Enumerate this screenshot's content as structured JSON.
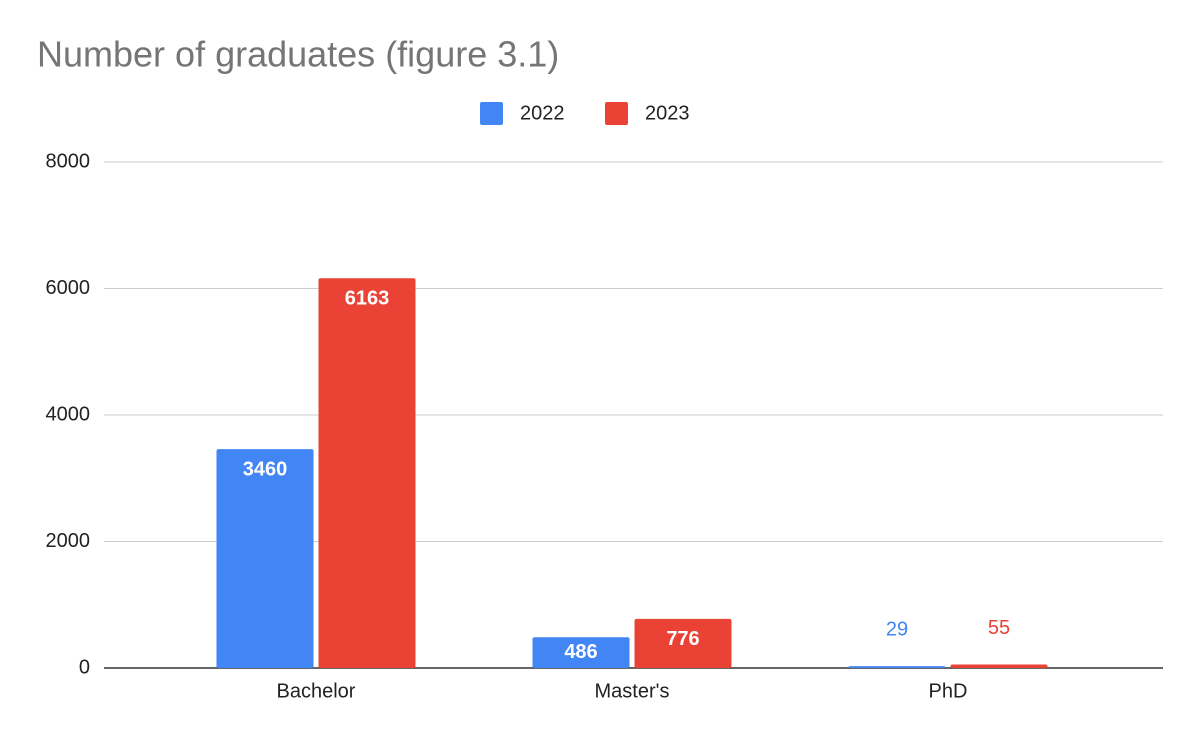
{
  "chart_data": {
    "type": "bar",
    "title": "Number of graduates (figure 3.1)",
    "categories": [
      "Bachelor",
      "Master's",
      "PhD"
    ],
    "series": [
      {
        "name": "2022",
        "color": "#4285f4",
        "values": [
          3460,
          486,
          29
        ]
      },
      {
        "name": "2023",
        "color": "#ea4335",
        "values": [
          6163,
          776,
          55
        ]
      }
    ],
    "ylim": [
      0,
      8000
    ],
    "yticks": [
      0,
      2000,
      4000,
      6000,
      8000
    ],
    "grid": true,
    "legend": "top"
  }
}
